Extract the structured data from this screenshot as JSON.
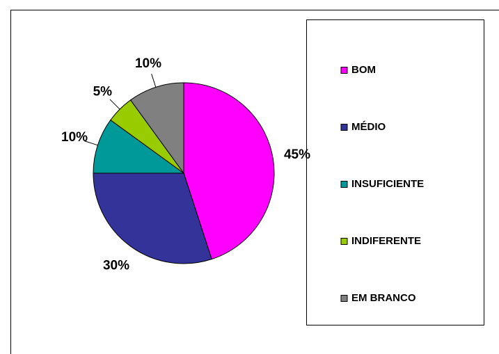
{
  "chart_data": {
    "type": "pie",
    "categories": [
      "BOM",
      "MÉDIO",
      "INSUFICIENTE",
      "INDIFERENTE",
      "EM BRANCO"
    ],
    "values": [
      45,
      30,
      10,
      5,
      10
    ],
    "value_labels": [
      "45%",
      "30%",
      "10%",
      "5%",
      "10%"
    ],
    "colors": [
      "#ff00ff",
      "#333399",
      "#009999",
      "#99cc00",
      "#808080"
    ],
    "legend": "right"
  }
}
